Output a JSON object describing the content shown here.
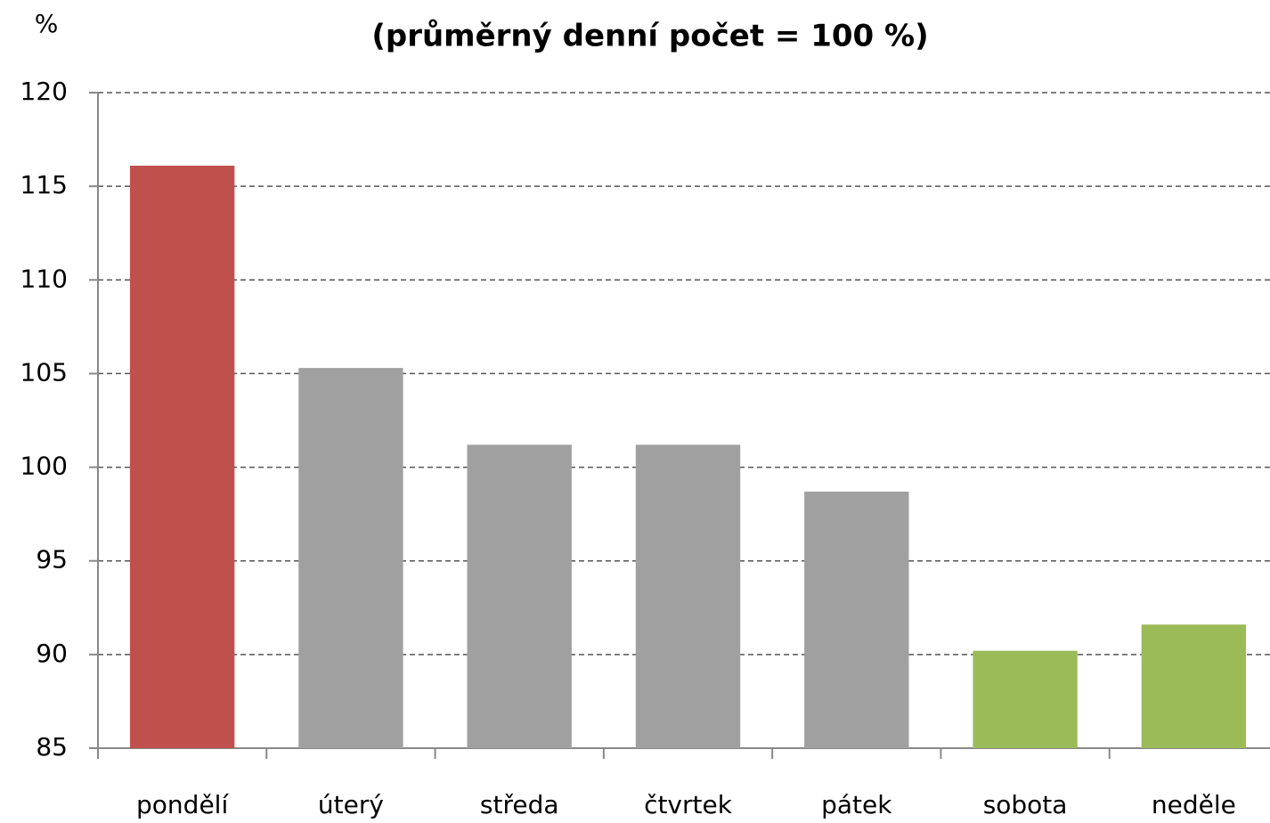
{
  "chart_data": {
    "type": "bar",
    "subtitle": "(průměrný denní počet = 100 %)",
    "y_label": "%",
    "categories": [
      "pondělí",
      "úterý",
      "středa",
      "čtvrtek",
      "pátek",
      "sobota",
      "neděle"
    ],
    "values": [
      116.1,
      105.3,
      101.2,
      101.2,
      98.7,
      90.2,
      91.6
    ],
    "colors": [
      "#c0504d",
      "#a0a0a0",
      "#a0a0a0",
      "#a0a0a0",
      "#a0a0a0",
      "#9bbb59",
      "#9bbb59"
    ],
    "ylim": [
      85,
      120
    ],
    "yticks": [
      85,
      90,
      95,
      100,
      105,
      110,
      115,
      120
    ],
    "grid": true
  }
}
